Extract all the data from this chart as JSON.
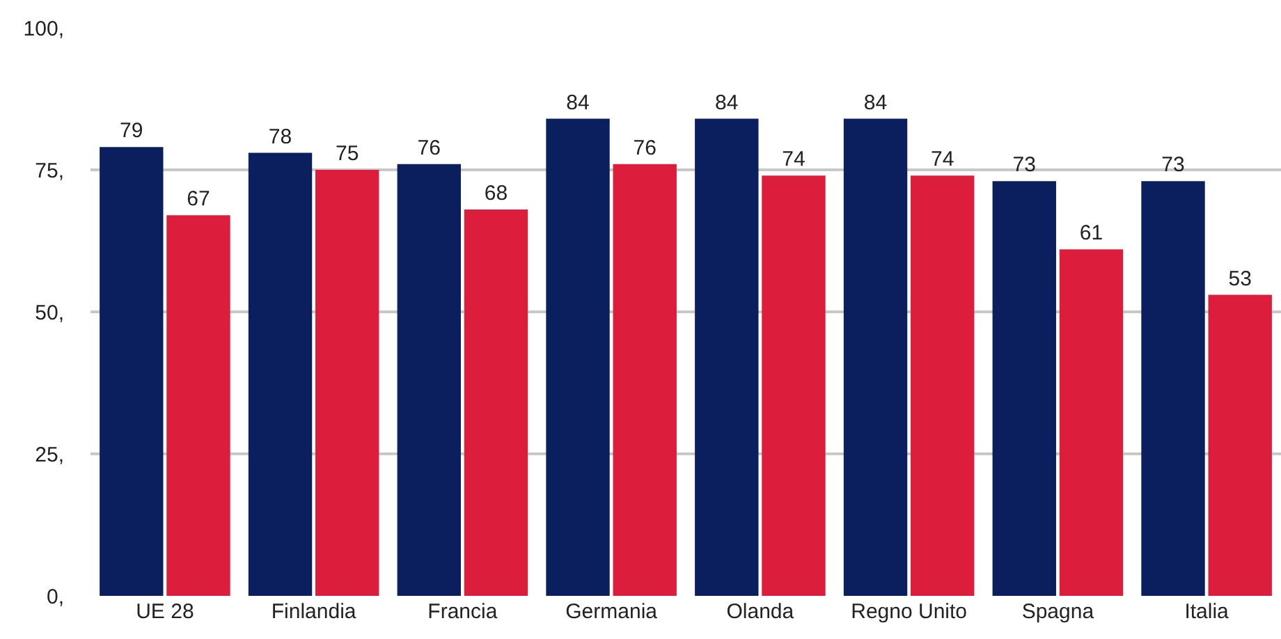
{
  "chart_data": {
    "type": "bar",
    "categories": [
      "UE 28",
      "Finlandia",
      "Francia",
      "Germania",
      "Olanda",
      "Regno Unito",
      "Spagna",
      "Italia"
    ],
    "series": [
      {
        "color": "#0b1f5e",
        "values": [
          79,
          78,
          76,
          84,
          84,
          84,
          73,
          73
        ]
      },
      {
        "color": "#dc1e3c",
        "values": [
          67,
          75,
          68,
          76,
          74,
          74,
          61,
          53
        ]
      }
    ],
    "ylim": [
      0,
      100
    ],
    "yticks": [
      {
        "value": 0,
        "label": "0,"
      },
      {
        "value": 25,
        "label": "25,"
      },
      {
        "value": 50,
        "label": "50,"
      },
      {
        "value": 75,
        "label": "75,"
      },
      {
        "value": 100,
        "label": "100,"
      }
    ],
    "grid": "y",
    "legend": false,
    "data_labels": true
  }
}
